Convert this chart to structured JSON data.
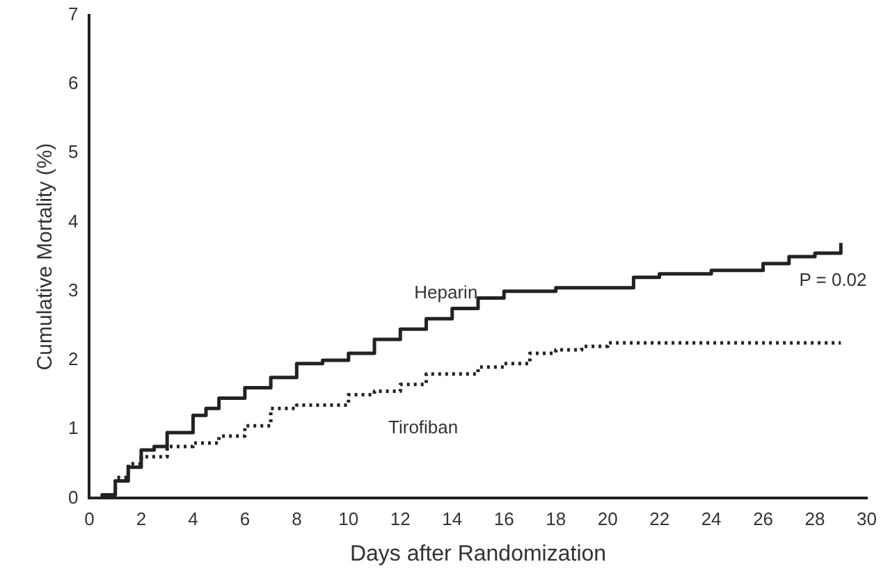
{
  "chart_data": {
    "type": "step",
    "xlabel": "Days after Randomization",
    "ylabel": "Cumulative Mortality (%)",
    "xlim": [
      0,
      30
    ],
    "xticks": [
      0,
      2,
      4,
      6,
      8,
      10,
      12,
      14,
      16,
      18,
      20,
      22,
      24,
      26,
      28,
      30
    ],
    "ylim": [
      0,
      7
    ],
    "yticks": [
      0,
      1,
      2,
      3,
      4,
      5,
      6,
      7
    ],
    "series": [
      {
        "name": "Heparin",
        "color": "#222222",
        "line_style": "solid",
        "x": [
          0,
          0.5,
          1,
          1.5,
          2,
          2.5,
          3,
          4,
          4.5,
          5,
          6,
          7,
          8,
          9,
          10,
          11,
          12,
          13,
          14,
          15,
          16,
          18,
          20,
          21,
          22,
          24,
          26,
          27,
          28,
          29
        ],
        "values": [
          0,
          0.05,
          0.25,
          0.45,
          0.7,
          0.75,
          0.95,
          1.2,
          1.3,
          1.45,
          1.6,
          1.75,
          1.95,
          2.0,
          2.1,
          2.3,
          2.45,
          2.6,
          2.75,
          2.9,
          3.0,
          3.05,
          3.05,
          3.2,
          3.25,
          3.3,
          3.4,
          3.5,
          3.55,
          3.7
        ]
      },
      {
        "name": "Tirofiban",
        "color": "#222222",
        "line_style": "dotted",
        "x": [
          0,
          0.5,
          1,
          1.5,
          2,
          3,
          4,
          5,
          6,
          7,
          8,
          10,
          11,
          12,
          13,
          14,
          15,
          16,
          17,
          18,
          19,
          20,
          29
        ],
        "values": [
          0,
          0.05,
          0.3,
          0.5,
          0.6,
          0.75,
          0.8,
          0.9,
          1.05,
          1.3,
          1.35,
          1.5,
          1.55,
          1.65,
          1.8,
          1.8,
          1.9,
          1.95,
          2.1,
          2.15,
          2.2,
          2.25,
          2.25
        ]
      }
    ],
    "annotations": [
      "P = 0.02"
    ],
    "grid": false,
    "legend": false,
    "marker": "none"
  }
}
